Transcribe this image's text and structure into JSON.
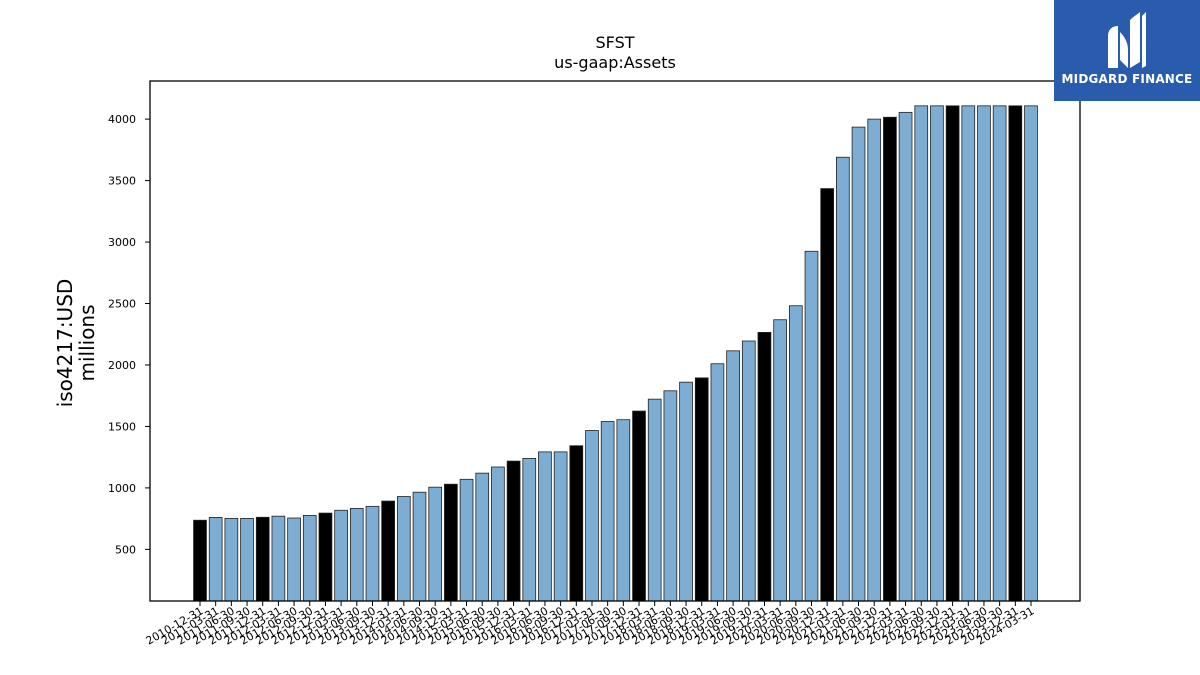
{
  "branding": {
    "logo_text": "MIDGARD FINANCE",
    "logo_bg": "#2a5cad",
    "logo_fg": "#ffffff"
  },
  "chart_data": {
    "type": "bar",
    "title": "SFST",
    "subtitle": "us-gaap:Assets",
    "ylabel_line1": "iso4217:USD",
    "ylabel_line2": "millions",
    "xlabel": "",
    "ylim": [
      80,
      4310
    ],
    "yticks": [
      500,
      1000,
      1500,
      2000,
      2500,
      3000,
      3500,
      4000
    ],
    "grid": false,
    "legend": "none",
    "colors": {
      "annual": "#000000",
      "quarterly": "#7eadd3",
      "edge": "#222222"
    },
    "categories": [
      "2010-12-31",
      "2011-03-31",
      "2011-06-30",
      "2011-09-30",
      "2011-12-31",
      "2012-03-31",
      "2012-06-30",
      "2012-09-30",
      "2012-12-31",
      "2013-03-31",
      "2013-06-30",
      "2013-09-30",
      "2013-12-31",
      "2014-03-31",
      "2014-06-30",
      "2014-09-30",
      "2014-12-31",
      "2015-03-31",
      "2015-06-30",
      "2015-09-30",
      "2015-12-31",
      "2016-03-31",
      "2016-06-30",
      "2016-09-30",
      "2016-12-31",
      "2017-03-31",
      "2017-06-30",
      "2017-09-30",
      "2017-12-31",
      "2018-03-31",
      "2018-06-30",
      "2018-09-30",
      "2018-12-31",
      "2019-03-31",
      "2019-06-30",
      "2019-09-30",
      "2019-12-31",
      "2020-03-31",
      "2020-06-30",
      "2020-09-30",
      "2020-12-31",
      "2021-03-31",
      "2021-06-30",
      "2021-09-30",
      "2021-12-31",
      "2022-03-31",
      "2022-06-30",
      "2022-09-30",
      "2022-12-31",
      "2023-03-31",
      "2023-06-30",
      "2023-09-30",
      "2023-12-31",
      "2024-03-31"
    ],
    "values": [
      737,
      760,
      752,
      752,
      761,
      770,
      755,
      776,
      795,
      818,
      833,
      850,
      893,
      930,
      965,
      1006,
      1030,
      1070,
      1120,
      1170,
      1218,
      1240,
      1293,
      1293,
      1343,
      1467,
      1540,
      1555,
      1625,
      1722,
      1790,
      1860,
      1895,
      2010,
      2115,
      2195,
      2265,
      2368,
      2482,
      2925,
      3435,
      3690,
      3935,
      4000,
      4015,
      4055,
      4108,
      4108,
      4108,
      4108,
      4108,
      4108,
      4108,
      4108
    ],
    "annual_flags": [
      1,
      0,
      0,
      0,
      1,
      0,
      0,
      0,
      1,
      0,
      0,
      0,
      1,
      0,
      0,
      0,
      1,
      0,
      0,
      0,
      1,
      0,
      0,
      0,
      1,
      0,
      0,
      0,
      1,
      0,
      0,
      0,
      1,
      0,
      0,
      0,
      1,
      0,
      0,
      0,
      1,
      0,
      0,
      0,
      1,
      0,
      0,
      0,
      1,
      0,
      0,
      0,
      1,
      0
    ]
  }
}
